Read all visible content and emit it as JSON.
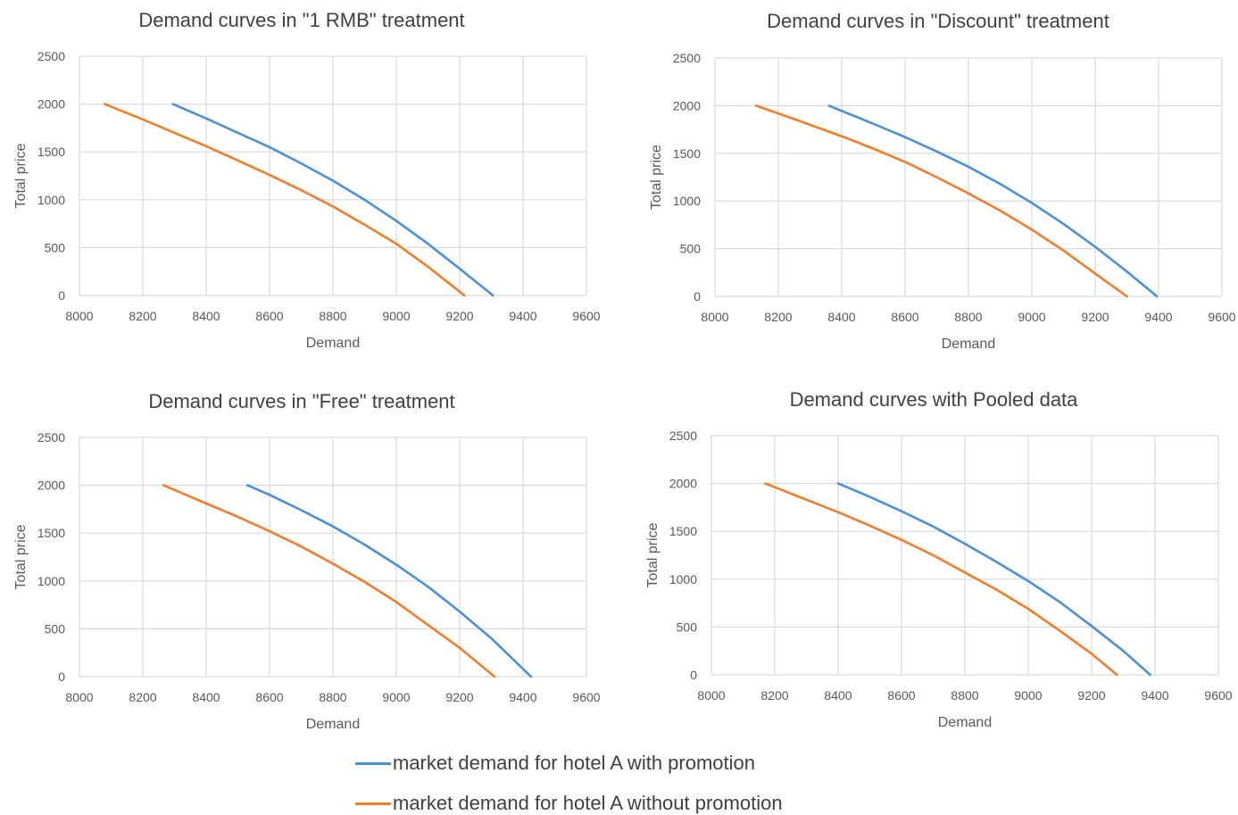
{
  "legend": [
    {
      "label": "market demand for hotel A with promotion",
      "color": "#4a90d4"
    },
    {
      "label": "market demand for hotel A without promotion",
      "color": "#f07d2a"
    }
  ],
  "chart_data": [
    {
      "type": "line",
      "title": "Demand curves in \"1 RMB\" treatment",
      "xlabel": "Demand",
      "ylabel": "Total price",
      "xlim": [
        8000,
        9600
      ],
      "ylim": [
        0,
        2500
      ],
      "xticks": [
        "8000",
        "8200",
        "8400",
        "8600",
        "8800",
        "9000",
        "9200",
        "9400",
        "9600"
      ],
      "yticks": [
        "0",
        "500",
        "1000",
        "1500",
        "2000",
        "2500"
      ],
      "grid": true,
      "series": [
        {
          "name": "market demand for hotel A with promotion",
          "color": "#4a90d4",
          "x": [
            8295,
            8400,
            8500,
            8600,
            8700,
            8800,
            8900,
            9000,
            9100,
            9200,
            9305
          ],
          "y": [
            2000,
            1850,
            1700,
            1550,
            1380,
            1200,
            1000,
            780,
            540,
            280,
            0
          ]
        },
        {
          "name": "market demand for hotel A without promotion",
          "color": "#f07d2a",
          "x": [
            8080,
            8200,
            8300,
            8400,
            8500,
            8600,
            8700,
            8800,
            8900,
            9000,
            9100,
            9215
          ],
          "y": [
            2000,
            1840,
            1700,
            1560,
            1410,
            1260,
            1100,
            930,
            740,
            540,
            300,
            0
          ]
        }
      ]
    },
    {
      "type": "line",
      "title": "Demand curves in \"Discount\" treatment",
      "xlabel": "Demand",
      "ylabel": "Total price",
      "xlim": [
        8000,
        9600
      ],
      "ylim": [
        0,
        2500
      ],
      "xticks": [
        "8000",
        "8200",
        "8400",
        "8600",
        "8800",
        "9000",
        "9200",
        "9400",
        "9600"
      ],
      "yticks": [
        "0",
        "500",
        "1000",
        "1500",
        "2000",
        "2500"
      ],
      "grid": true,
      "series": [
        {
          "name": "market demand for hotel A with promotion",
          "color": "#4a90d4",
          "x": [
            8360,
            8500,
            8600,
            8700,
            8800,
            8900,
            9000,
            9100,
            9200,
            9300,
            9395
          ],
          "y": [
            2000,
            1810,
            1670,
            1520,
            1360,
            1180,
            980,
            760,
            520,
            260,
            0
          ]
        },
        {
          "name": "market demand for hotel A without promotion",
          "color": "#f07d2a",
          "x": [
            8130,
            8250,
            8400,
            8500,
            8600,
            8700,
            8800,
            8900,
            9000,
            9100,
            9200,
            9300
          ],
          "y": [
            2000,
            1860,
            1680,
            1550,
            1410,
            1250,
            1080,
            900,
            700,
            480,
            240,
            0
          ]
        }
      ]
    },
    {
      "type": "line",
      "title": "Demand curves in \"Free\" treatment",
      "xlabel": "Demand",
      "ylabel": "Total price",
      "xlim": [
        8000,
        9600
      ],
      "ylim": [
        0,
        2500
      ],
      "xticks": [
        "8000",
        "8200",
        "8400",
        "8600",
        "8800",
        "9000",
        "9200",
        "9400",
        "9600"
      ],
      "yticks": [
        "0",
        "500",
        "1000",
        "1500",
        "2000",
        "2500"
      ],
      "grid": true,
      "series": [
        {
          "name": "market demand for hotel A with promotion",
          "color": "#4a90d4",
          "x": [
            8530,
            8600,
            8700,
            8800,
            8900,
            9000,
            9100,
            9200,
            9300,
            9425
          ],
          "y": [
            2000,
            1900,
            1740,
            1570,
            1380,
            1170,
            940,
            680,
            400,
            0
          ]
        },
        {
          "name": "market demand for hotel A without promotion",
          "color": "#f07d2a",
          "x": [
            8265,
            8400,
            8500,
            8600,
            8700,
            8800,
            8900,
            9000,
            9100,
            9200,
            9310
          ],
          "y": [
            2000,
            1810,
            1670,
            1520,
            1360,
            1180,
            990,
            780,
            540,
            300,
            0
          ]
        }
      ]
    },
    {
      "type": "line",
      "title": "Demand curves with Pooled data",
      "xlabel": "Demand",
      "ylabel": "Total price",
      "xlim": [
        8000,
        9600
      ],
      "ylim": [
        0,
        2500
      ],
      "xticks": [
        "8000",
        "8200",
        "8400",
        "8600",
        "8800",
        "9000",
        "9200",
        "9400",
        "9600"
      ],
      "yticks": [
        "0",
        "500",
        "1000",
        "1500",
        "2000",
        "2500"
      ],
      "grid": true,
      "series": [
        {
          "name": "market demand for hotel A with promotion",
          "color": "#4a90d4",
          "x": [
            8400,
            8500,
            8600,
            8700,
            8800,
            8900,
            9000,
            9100,
            9200,
            9300,
            9385
          ],
          "y": [
            2000,
            1860,
            1710,
            1550,
            1370,
            1180,
            980,
            760,
            510,
            250,
            0
          ]
        },
        {
          "name": "market demand for hotel A without promotion",
          "color": "#f07d2a",
          "x": [
            8170,
            8300,
            8400,
            8500,
            8600,
            8700,
            8800,
            8900,
            9000,
            9100,
            9200,
            9280
          ],
          "y": [
            2000,
            1830,
            1700,
            1560,
            1410,
            1250,
            1070,
            890,
            690,
            460,
            220,
            0
          ]
        }
      ]
    }
  ]
}
